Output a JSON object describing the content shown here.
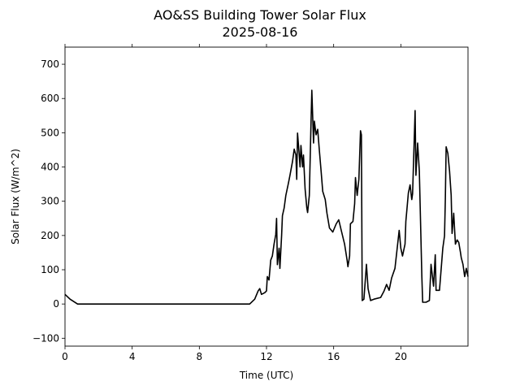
{
  "chart_data": {
    "type": "line",
    "title": "AO&SS Building Tower Solar Flux",
    "subtitle": "2025-08-16",
    "xlabel": "Time (UTC)",
    "ylabel": "Solar Flux (W/m^2)",
    "xlim": [
      0,
      24
    ],
    "ylim": [
      -123,
      750
    ],
    "xticks": [
      0,
      4,
      8,
      12,
      16,
      20
    ],
    "xtick_labels": [
      "0",
      "4",
      "8",
      "12",
      "16",
      "20"
    ],
    "yticks": [
      -100,
      0,
      100,
      200,
      300,
      400,
      500,
      600,
      700
    ],
    "ytick_labels": [
      "−100",
      "0",
      "100",
      "200",
      "300",
      "400",
      "500",
      "600",
      "700"
    ],
    "grid": false,
    "series": [
      {
        "name": "Solar Flux",
        "color": "#000000",
        "points": [
          [
            0,
            28
          ],
          [
            0.3,
            14
          ],
          [
            0.75,
            0
          ],
          [
            11.0,
            0
          ],
          [
            11.3,
            14
          ],
          [
            11.5,
            38
          ],
          [
            11.6,
            45
          ],
          [
            11.7,
            28
          ],
          [
            11.9,
            33
          ],
          [
            12.0,
            38
          ],
          [
            12.05,
            80
          ],
          [
            12.15,
            70
          ],
          [
            12.25,
            128
          ],
          [
            12.35,
            140
          ],
          [
            12.45,
            175
          ],
          [
            12.55,
            203
          ],
          [
            12.6,
            250
          ],
          [
            12.65,
            115
          ],
          [
            12.75,
            163
          ],
          [
            12.8,
            104
          ],
          [
            12.9,
            200
          ],
          [
            12.95,
            258
          ],
          [
            13.05,
            280
          ],
          [
            13.15,
            317
          ],
          [
            13.3,
            352
          ],
          [
            13.4,
            376
          ],
          [
            13.55,
            416
          ],
          [
            13.65,
            452
          ],
          [
            13.75,
            435
          ],
          [
            13.8,
            364
          ],
          [
            13.85,
            499
          ],
          [
            13.95,
            435
          ],
          [
            14.0,
            400
          ],
          [
            14.05,
            463
          ],
          [
            14.15,
            400
          ],
          [
            14.2,
            435
          ],
          [
            14.3,
            336
          ],
          [
            14.4,
            281
          ],
          [
            14.45,
            267
          ],
          [
            14.55,
            317
          ],
          [
            14.65,
            530
          ],
          [
            14.7,
            624
          ],
          [
            14.8,
            470
          ],
          [
            14.85,
            534
          ],
          [
            14.95,
            494
          ],
          [
            15.05,
            510
          ],
          [
            15.15,
            447
          ],
          [
            15.25,
            388
          ],
          [
            15.35,
            329
          ],
          [
            15.5,
            305
          ],
          [
            15.6,
            265
          ],
          [
            15.75,
            222
          ],
          [
            15.95,
            210
          ],
          [
            16.15,
            234
          ],
          [
            16.3,
            246
          ],
          [
            16.45,
            215
          ],
          [
            16.65,
            175
          ],
          [
            16.8,
            128
          ],
          [
            16.85,
            109
          ],
          [
            16.95,
            140
          ],
          [
            17.0,
            234
          ],
          [
            17.15,
            241
          ],
          [
            17.25,
            293
          ],
          [
            17.3,
            369
          ],
          [
            17.4,
            317
          ],
          [
            17.5,
            364
          ],
          [
            17.6,
            506
          ],
          [
            17.65,
            494
          ],
          [
            17.7,
            10
          ],
          [
            17.8,
            14
          ],
          [
            17.9,
            80
          ],
          [
            17.95,
            116
          ],
          [
            18.05,
            45
          ],
          [
            18.2,
            10
          ],
          [
            18.4,
            14
          ],
          [
            18.8,
            19
          ],
          [
            19.0,
            38
          ],
          [
            19.15,
            57
          ],
          [
            19.3,
            40
          ],
          [
            19.45,
            76
          ],
          [
            19.65,
            104
          ],
          [
            19.9,
            215
          ],
          [
            20.0,
            163
          ],
          [
            20.1,
            140
          ],
          [
            20.25,
            175
          ],
          [
            20.3,
            241
          ],
          [
            20.45,
            324
          ],
          [
            20.55,
            348
          ],
          [
            20.65,
            305
          ],
          [
            20.7,
            322
          ],
          [
            20.85,
            565
          ],
          [
            20.9,
            376
          ],
          [
            21.0,
            470
          ],
          [
            21.1,
            388
          ],
          [
            21.25,
            80
          ],
          [
            21.3,
            5
          ],
          [
            21.5,
            5
          ],
          [
            21.7,
            10
          ],
          [
            21.8,
            116
          ],
          [
            21.95,
            52
          ],
          [
            22.05,
            144
          ],
          [
            22.1,
            40
          ],
          [
            22.3,
            40
          ],
          [
            22.5,
            163
          ],
          [
            22.6,
            199
          ],
          [
            22.65,
            305
          ],
          [
            22.7,
            459
          ],
          [
            22.8,
            440
          ],
          [
            22.9,
            388
          ],
          [
            23.0,
            317
          ],
          [
            23.05,
            206
          ],
          [
            23.15,
            265
          ],
          [
            23.25,
            175
          ],
          [
            23.35,
            187
          ],
          [
            23.45,
            180
          ],
          [
            23.55,
            151
          ],
          [
            23.6,
            135
          ],
          [
            23.7,
            116
          ],
          [
            23.8,
            80
          ],
          [
            23.9,
            104
          ],
          [
            24.0,
            80
          ]
        ]
      }
    ]
  }
}
